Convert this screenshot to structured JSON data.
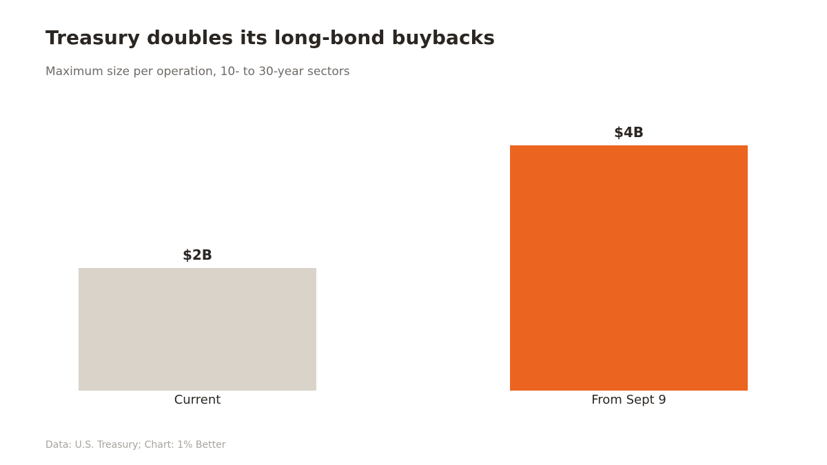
{
  "title": "Treasury doubles its long-bond buybacks",
  "subtitle": "Maximum size per operation, 10- to 30-year sectors",
  "source": "Data: U.S. Treasury; Chart: 1% Better",
  "colors": {
    "current": "#d9d3ca",
    "new": "#ec6520",
    "text": "#2b2622"
  },
  "chart_data": {
    "type": "bar",
    "categories": [
      "Current",
      "From Sept 9"
    ],
    "values": [
      2,
      4
    ],
    "value_labels": [
      "$2B",
      "$4B"
    ],
    "xlabel": "",
    "ylabel": "",
    "ylim": [
      0,
      4
    ],
    "grid": false
  }
}
